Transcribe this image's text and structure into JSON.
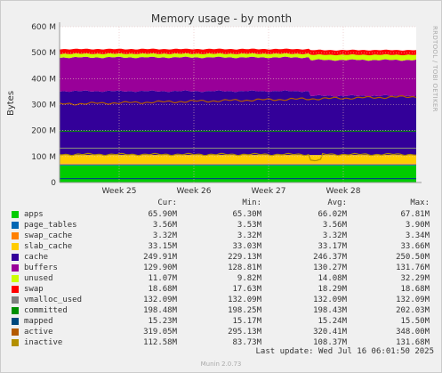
{
  "chart_data": {
    "type": "area",
    "title": "Memory usage - by month",
    "ylabel": "Bytes",
    "ylim": [
      0,
      600
    ],
    "y_ticks": [
      0,
      100,
      200,
      300,
      400,
      500,
      600
    ],
    "y_tick_labels": [
      "0",
      "100 M",
      "200 M",
      "300 M",
      "400 M",
      "500 M",
      "600 M"
    ],
    "x_tick_labels": [
      "Week 25",
      "Week 26",
      "Week 27",
      "Week 28"
    ],
    "grid": true,
    "stacked_series": [
      {
        "name": "apps",
        "color": "#00cc00",
        "value": 66
      },
      {
        "name": "page_tables",
        "color": "#0066b3",
        "value": 3.5
      },
      {
        "name": "swap_cache",
        "color": "#ff8000",
        "value": 3.3
      },
      {
        "name": "slab_cache",
        "color": "#ffcc00",
        "value": 33
      },
      {
        "name": "cache",
        "color": "#330099",
        "value": 246
      },
      {
        "name": "buffers",
        "color": "#990099",
        "value": 130
      },
      {
        "name": "unused",
        "color": "#ccff00",
        "value": 14
      },
      {
        "name": "swap",
        "color": "#ff0000",
        "value": 18
      }
    ],
    "line_series": [
      {
        "name": "vmalloc_used",
        "color": "#808080",
        "value": 132
      },
      {
        "name": "committed",
        "color": "#008f00",
        "value": 198
      },
      {
        "name": "mapped",
        "color": "#00487d",
        "value": 15
      },
      {
        "name": "active",
        "color": "#b35a00",
        "value": 320
      },
      {
        "name": "inactive",
        "color": "#b38f00",
        "value": 108
      }
    ]
  },
  "legend": {
    "headers": [
      "Cur:",
      "Min:",
      "Avg:",
      "Max:"
    ],
    "rows": [
      {
        "name": "apps",
        "color": "#00cc00",
        "cur": "65.90M",
        "min": "65.30M",
        "avg": "66.02M",
        "max": "67.81M"
      },
      {
        "name": "page_tables",
        "color": "#0066b3",
        "cur": "3.56M",
        "min": "3.53M",
        "avg": "3.56M",
        "max": "3.90M"
      },
      {
        "name": "swap_cache",
        "color": "#ff8000",
        "cur": "3.32M",
        "min": "3.32M",
        "avg": "3.32M",
        "max": "3.34M"
      },
      {
        "name": "slab_cache",
        "color": "#ffcc00",
        "cur": "33.15M",
        "min": "33.03M",
        "avg": "33.17M",
        "max": "33.66M"
      },
      {
        "name": "cache",
        "color": "#330099",
        "cur": "249.91M",
        "min": "229.13M",
        "avg": "246.37M",
        "max": "250.50M"
      },
      {
        "name": "buffers",
        "color": "#990099",
        "cur": "129.90M",
        "min": "128.81M",
        "avg": "130.27M",
        "max": "131.76M"
      },
      {
        "name": "unused",
        "color": "#ccff00",
        "cur": "11.07M",
        "min": "9.82M",
        "avg": "14.08M",
        "max": "32.29M"
      },
      {
        "name": "swap",
        "color": "#ff0000",
        "cur": "18.68M",
        "min": "17.63M",
        "avg": "18.29M",
        "max": "18.68M"
      },
      {
        "name": "vmalloc_used",
        "color": "#808080",
        "cur": "132.09M",
        "min": "132.09M",
        "avg": "132.09M",
        "max": "132.09M"
      },
      {
        "name": "committed",
        "color": "#008f00",
        "cur": "198.48M",
        "min": "198.25M",
        "avg": "198.43M",
        "max": "202.03M"
      },
      {
        "name": "mapped",
        "color": "#00487d",
        "cur": "15.23M",
        "min": "15.17M",
        "avg": "15.24M",
        "max": "15.50M"
      },
      {
        "name": "active",
        "color": "#b35a00",
        "cur": "319.05M",
        "min": "295.13M",
        "avg": "320.41M",
        "max": "348.00M"
      },
      {
        "name": "inactive",
        "color": "#b38f00",
        "cur": "112.58M",
        "min": "83.73M",
        "avg": "108.37M",
        "max": "131.68M"
      }
    ]
  },
  "last_update": "Last update: Wed Jul 16 06:01:50 2025",
  "side_label": "RRDTOOL / TOBI OETIKER",
  "footer": "Munin 2.0.73"
}
